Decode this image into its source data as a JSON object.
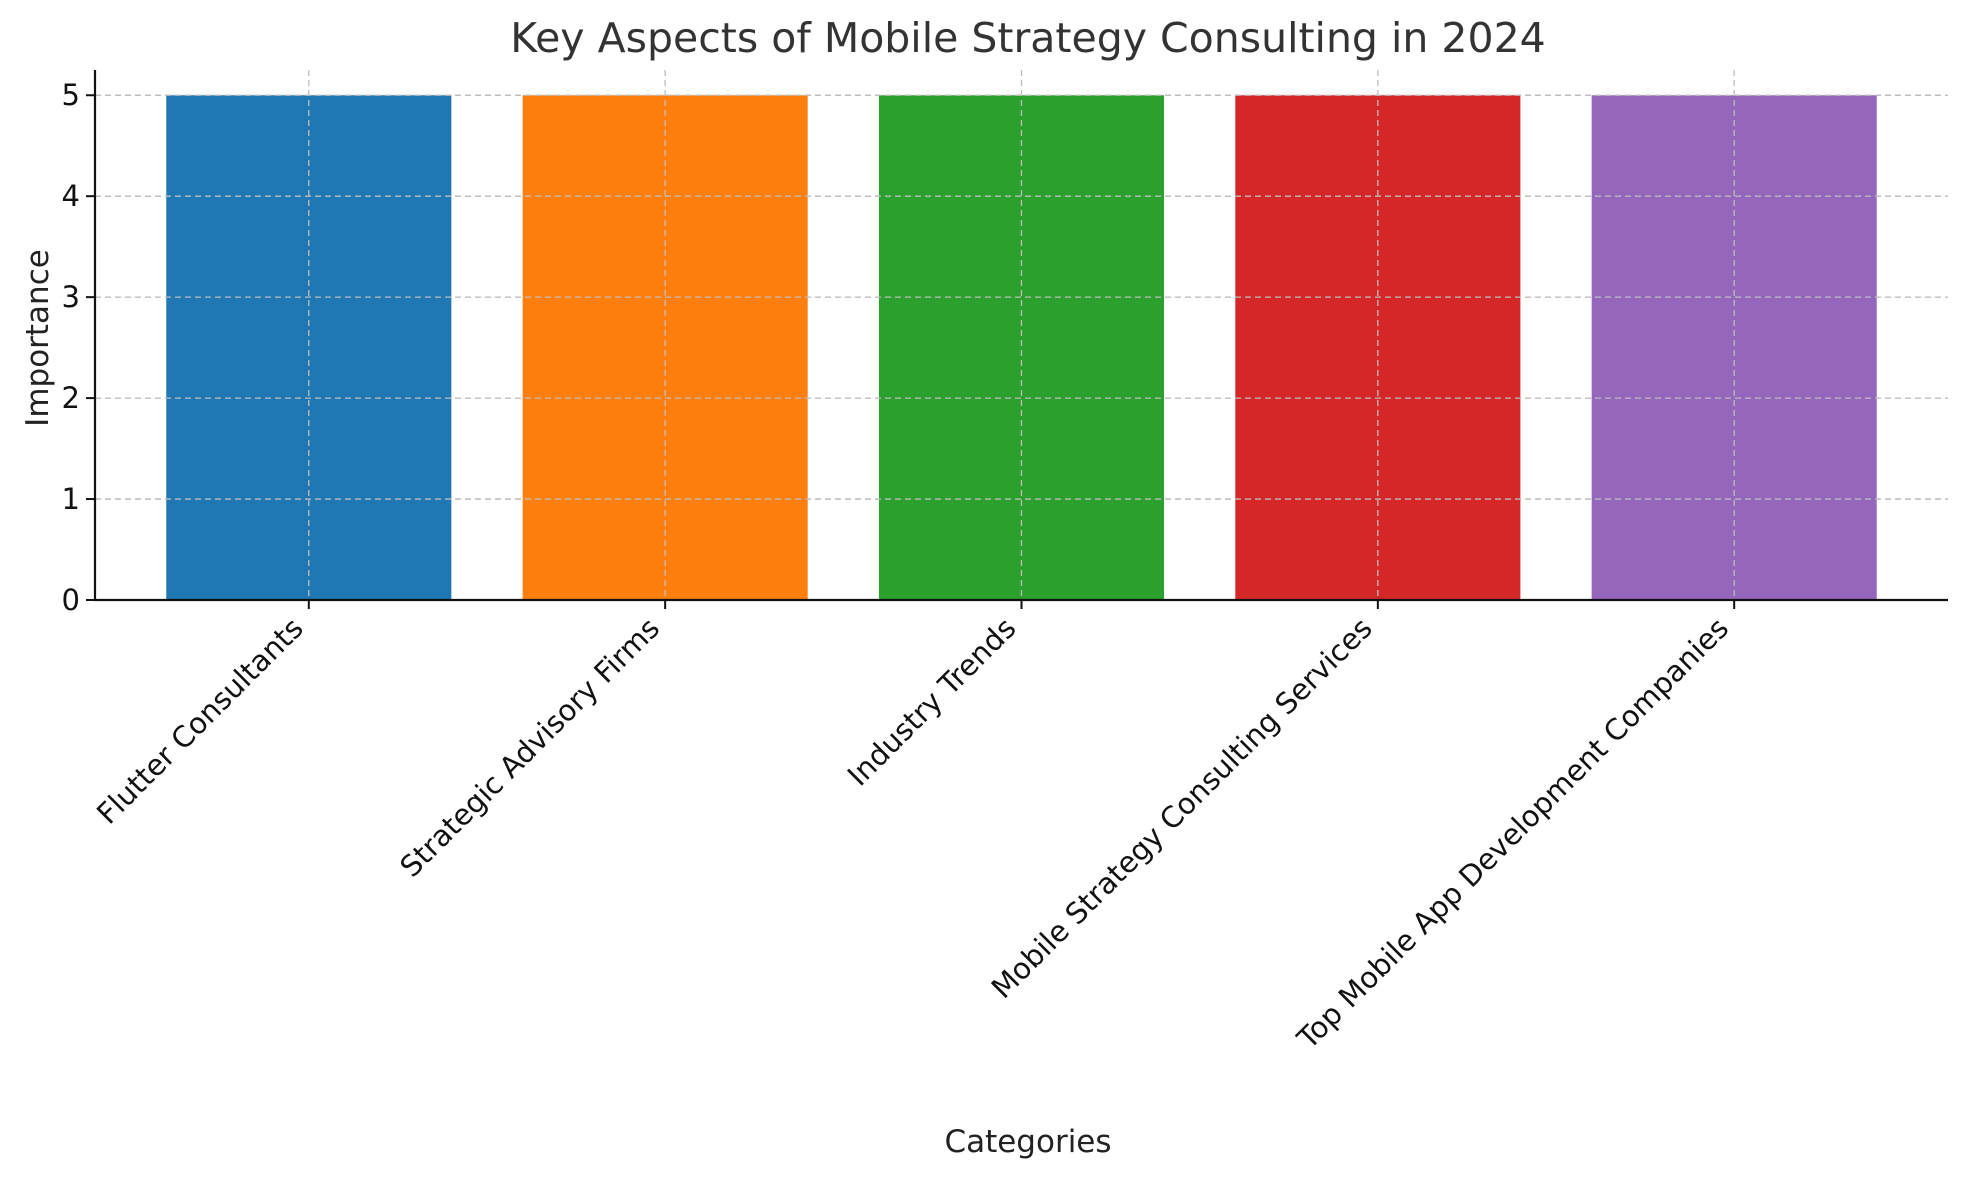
{
  "chart_data": {
    "type": "bar",
    "title": "Key Aspects of Mobile Strategy Consulting in 2024",
    "xlabel": "Categories",
    "ylabel": "Importance",
    "categories": [
      "Flutter Consultants",
      "Strategic Advisory Firms",
      "Industry Trends",
      "Mobile Strategy Consulting Services",
      "Top Mobile App Development Companies"
    ],
    "values": [
      5,
      5,
      5,
      5,
      5
    ],
    "colors": [
      "#1f77b4",
      "#ff7f0e",
      "#2ca02c",
      "#d62728",
      "#9467bd"
    ],
    "ylim": [
      0,
      5.25
    ],
    "yticks": [
      0,
      1,
      2,
      3,
      4,
      5
    ],
    "grid": true,
    "legend": "none"
  }
}
